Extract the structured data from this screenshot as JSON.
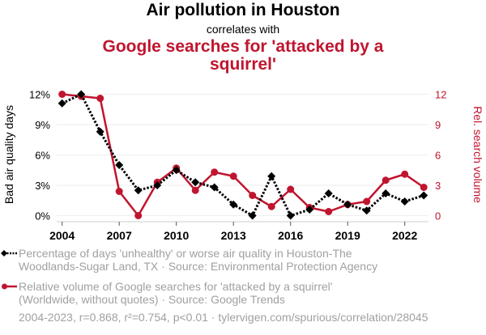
{
  "header": {
    "title": "Air pollution in Houston",
    "subtitle": "correlates with",
    "title2": "Google searches for 'attacked by a squirrel'"
  },
  "colors": {
    "series1": "#000000",
    "series2": "#c0152f",
    "grid": "#eeeeee",
    "axis": "#cccccc",
    "legend_text": "#a0a0a0"
  },
  "chart_data": {
    "type": "line",
    "title": "Air pollution in Houston correlates with Google searches for 'attacked by a squirrel'",
    "x": [
      2004,
      2005,
      2006,
      2007,
      2008,
      2009,
      2010,
      2011,
      2012,
      2013,
      2014,
      2015,
      2016,
      2017,
      2018,
      2019,
      2020,
      2021,
      2022,
      2023
    ],
    "xticks": [
      2004,
      2007,
      2010,
      2013,
      2016,
      2019,
      2022
    ],
    "xlim": [
      2004,
      2023
    ],
    "left_axis": {
      "label": "Bad air quality days",
      "ylim": [
        0,
        12
      ],
      "ticks": [
        "0%",
        "3%",
        "6%",
        "9%",
        "12%"
      ],
      "tick_values": [
        0,
        3,
        6,
        9,
        12
      ]
    },
    "right_axis": {
      "label": "Rel. search volume",
      "ylim": [
        0,
        12
      ],
      "ticks": [
        "0",
        "3",
        "6",
        "9",
        "12"
      ],
      "tick_values": [
        0,
        3,
        6,
        9,
        12
      ]
    },
    "grid": true,
    "series": [
      {
        "name": "Percentage of days 'unhealthy' or worse air quality in Houston-The Woodlands-Sugar Land, TX · Source: Environmental Protection Agency",
        "axis": "left",
        "style": "dotted",
        "marker": "diamond",
        "color": "#000000",
        "values": [
          11.1,
          12.0,
          8.3,
          5.0,
          2.5,
          3.0,
          4.5,
          3.3,
          2.8,
          1.1,
          0.0,
          3.9,
          0.0,
          0.6,
          2.2,
          1.1,
          0.5,
          2.2,
          1.4,
          2.0
        ]
      },
      {
        "name": "Relative volume of Google searches for 'attacked by a squirrel' (Worldwide, without quotes) · Source: Google Trends",
        "axis": "right",
        "style": "solid",
        "marker": "circle",
        "color": "#c0152f",
        "values": [
          12.0,
          11.8,
          11.6,
          2.4,
          0.0,
          3.3,
          4.7,
          2.5,
          4.3,
          3.9,
          2.0,
          0.9,
          2.6,
          0.8,
          0.4,
          1.1,
          1.4,
          3.5,
          4.1,
          2.8
        ]
      }
    ],
    "legend_placement": "bottom"
  },
  "legend": {
    "items": [
      {
        "line1": "Percentage of days 'unhealthy' or worse air quality in Houston-The",
        "line2": "Woodlands-Sugar Land, TX · Source: Environmental Protection Agency"
      },
      {
        "line1": "Relative volume of Google searches for 'attacked by a squirrel'",
        "line2": "(Worldwide, without quotes) · Source: Google Trends"
      }
    ]
  },
  "footer": "2004-2023, r=0.868, r²=0.754, p<0.01 · tylervigen.com/spurious/correlation/28045"
}
